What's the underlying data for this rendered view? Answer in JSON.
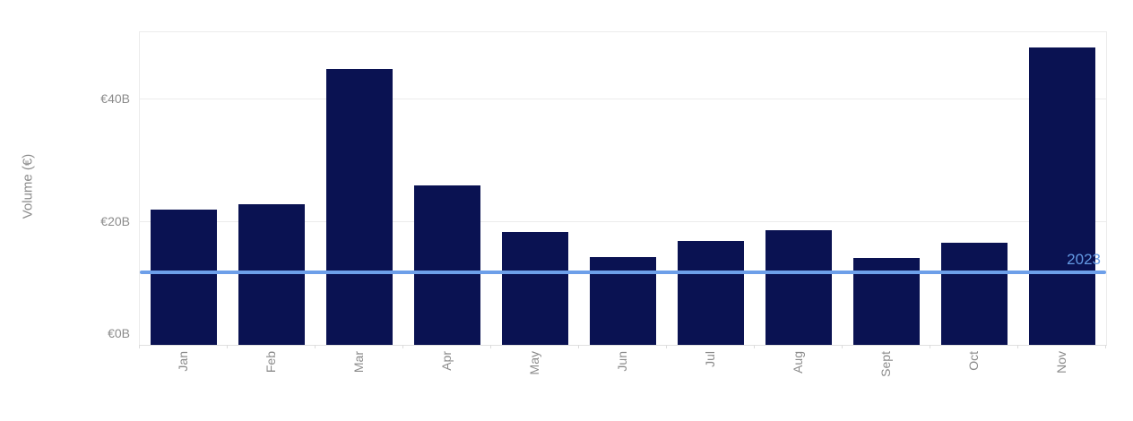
{
  "chart_data": {
    "type": "bar",
    "title": "",
    "xlabel": "",
    "ylabel": "Volume (€)",
    "categories": [
      "Jan",
      "Feb",
      "Mar",
      "Apr",
      "May",
      "Jun",
      "Jul",
      "Aug",
      "Sept",
      "Oct",
      "Nov"
    ],
    "values": [
      22,
      23,
      45,
      26,
      18.4,
      14.3,
      16.9,
      18.7,
      14.2,
      16.6,
      48.5
    ],
    "y_ticks": [
      {
        "value": 0,
        "label": "€0B"
      },
      {
        "value": 20,
        "label": "€20B"
      },
      {
        "value": 40,
        "label": "€40B"
      }
    ],
    "ylim": [
      0,
      51
    ],
    "grid": "horizontal",
    "legend": "none",
    "reference_line": {
      "label": "2023",
      "value": 11.9
    },
    "colors": {
      "bar": "#0a1252",
      "reference_line": "#6d9fe9",
      "reference_label": "#649ae4",
      "axis_text": "#8b8b8b",
      "gridline": "#ececec"
    }
  }
}
